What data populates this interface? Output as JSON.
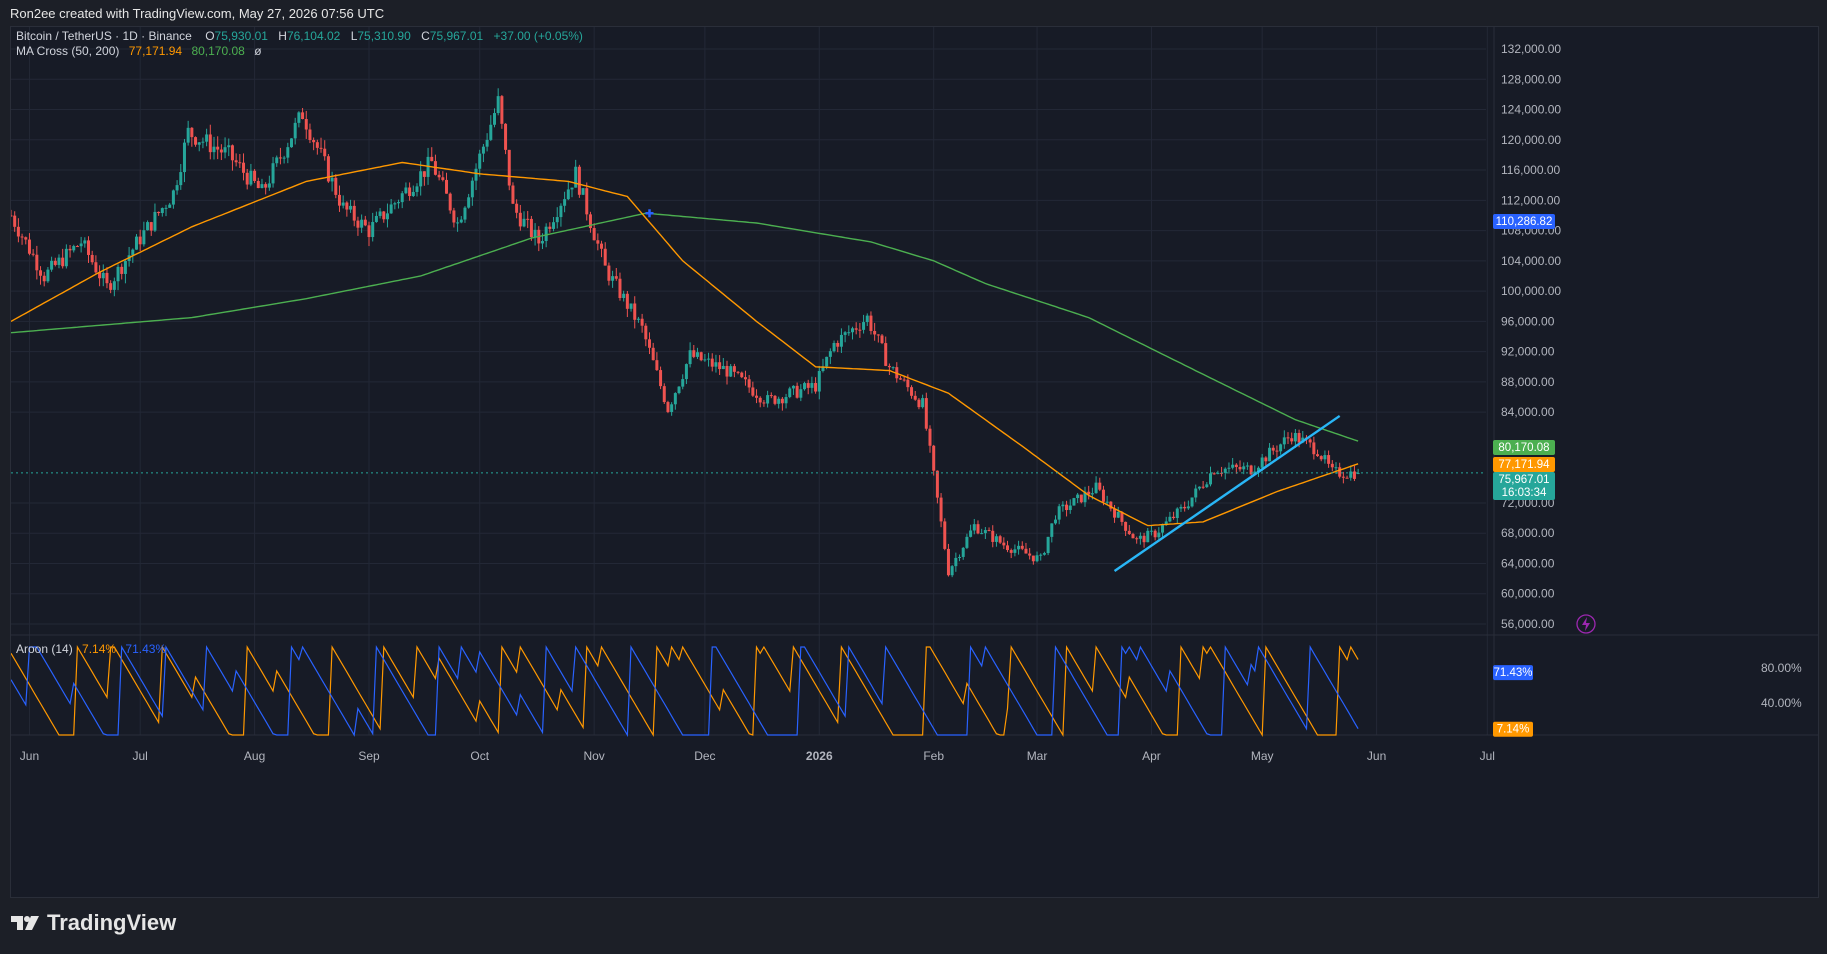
{
  "caption": "Ron2ee created with TradingView.com, May 27, 2026 07:56 UTC",
  "brand": "TradingView",
  "legend": {
    "symbol": "Bitcoin / TetherUS · 1D · Binance",
    "o_label": "O",
    "o": "75,930.01",
    "h_label": "H",
    "h": "76,104.02",
    "l_label": "L",
    "l": "75,310.90",
    "c_label": "C",
    "c": "75,967.01",
    "change": "+37.00 (+0.05%)",
    "ma_name": "MA Cross (50, 200)",
    "ma_fast": "77,171.94",
    "ma_slow": "80,170.08",
    "ma_glyph": "ø",
    "aroon_name": "Aroon (14)",
    "aroon_up": "7.14%",
    "aroon_down": "71.43%"
  },
  "colors": {
    "up": "#26a69a",
    "down": "#ef5350",
    "ma_fast": "#ff9800",
    "ma_slow": "#4caf50",
    "aroon_up": "#ff9800",
    "aroon_down": "#2962ff",
    "trendline": "#29b6f6",
    "badge_blue": "#2962ff",
    "badge_green": "#26a69a"
  },
  "chart_data": {
    "type": "candlestick",
    "title": "Bitcoin / TetherUS · 1D · Binance",
    "y_ticks": [
      "132,000.00",
      "128,000.00",
      "124,000.00",
      "120,000.00",
      "116,000.00",
      "112,000.00",
      "108,000.00",
      "104,000.00",
      "100,000.00",
      "96,000.00",
      "92,000.00",
      "88,000.00",
      "84,000.00",
      "72,000.00",
      "68,000.00",
      "64,000.00",
      "60,000.00",
      "56,000.00"
    ],
    "ylim": [
      56000,
      132000
    ],
    "x_labels": [
      "Jun",
      "Jul",
      "Aug",
      "Sep",
      "Oct",
      "Nov",
      "Dec",
      "2026",
      "Feb",
      "Mar",
      "Apr",
      "May",
      "Jun",
      "Jul"
    ],
    "price_path": [
      [
        "2025-05-27",
        110000
      ],
      [
        "2025-06-05",
        102000
      ],
      [
        "2025-06-15",
        106500
      ],
      [
        "2025-06-22",
        100500
      ],
      [
        "2025-07-01",
        107000
      ],
      [
        "2025-07-10",
        113000
      ],
      [
        "2025-07-14",
        121000
      ],
      [
        "2025-07-25",
        118000
      ],
      [
        "2025-08-03",
        113000
      ],
      [
        "2025-08-14",
        123500
      ],
      [
        "2025-08-25",
        111000
      ],
      [
        "2025-09-01",
        108000
      ],
      [
        "2025-09-18",
        117000
      ],
      [
        "2025-09-25",
        109000
      ],
      [
        "2025-10-06",
        125000
      ],
      [
        "2025-10-10",
        111000
      ],
      [
        "2025-10-17",
        106500
      ],
      [
        "2025-10-27",
        115500
      ],
      [
        "2025-11-04",
        103000
      ],
      [
        "2025-11-14",
        95000
      ],
      [
        "2025-11-21",
        84500
      ],
      [
        "2025-11-27",
        91500
      ],
      [
        "2025-12-07",
        89500
      ],
      [
        "2025-12-18",
        85500
      ],
      [
        "2025-12-31",
        87500
      ],
      [
        "2026-01-05",
        93000
      ],
      [
        "2026-01-14",
        96500
      ],
      [
        "2026-01-20",
        90000
      ],
      [
        "2026-01-29",
        85000
      ],
      [
        "2026-02-05",
        63000
      ],
      [
        "2026-02-12",
        69000
      ],
      [
        "2026-02-20",
        66500
      ],
      [
        "2026-03-02",
        64500
      ],
      [
        "2026-03-06",
        70500
      ],
      [
        "2026-03-17",
        74000
      ],
      [
        "2026-03-28",
        67000
      ],
      [
        "2026-04-02",
        68000
      ],
      [
        "2026-04-10",
        71500
      ],
      [
        "2026-04-18",
        76500
      ],
      [
        "2026-04-28",
        76500
      ],
      [
        "2026-05-09",
        81000
      ],
      [
        "2026-05-16",
        79000
      ],
      [
        "2026-05-20",
        76000
      ],
      [
        "2026-05-27",
        75967
      ]
    ],
    "ma_50_path": [
      [
        "2025-05-27",
        96000
      ],
      [
        "2025-06-20",
        102500
      ],
      [
        "2025-07-15",
        108500
      ],
      [
        "2025-08-15",
        114500
      ],
      [
        "2025-09-10",
        117000
      ],
      [
        "2025-10-01",
        115500
      ],
      [
        "2025-10-25",
        114500
      ],
      [
        "2025-11-10",
        112500
      ],
      [
        "2025-11-25",
        104000
      ],
      [
        "2025-12-15",
        96000
      ],
      [
        "2025-12-31",
        90000
      ],
      [
        "2026-01-20",
        89500
      ],
      [
        "2026-02-05",
        86500
      ],
      [
        "2026-02-25",
        79500
      ],
      [
        "2026-03-15",
        73000
      ],
      [
        "2026-03-31",
        69000
      ],
      [
        "2026-04-15",
        69500
      ],
      [
        "2026-05-05",
        73500
      ],
      [
        "2026-05-27",
        77172
      ]
    ],
    "ma_200_path": [
      [
        "2025-05-27",
        94500
      ],
      [
        "2025-07-15",
        96500
      ],
      [
        "2025-08-15",
        99000
      ],
      [
        "2025-09-15",
        102000
      ],
      [
        "2025-10-15",
        107000
      ],
      [
        "2025-11-15",
        110300
      ],
      [
        "2025-12-15",
        109000
      ],
      [
        "2026-01-15",
        106500
      ],
      [
        "2026-02-01",
        104000
      ],
      [
        "2026-02-15",
        101000
      ],
      [
        "2026-03-15",
        96500
      ],
      [
        "2026-04-15",
        89000
      ],
      [
        "2026-05-10",
        83000
      ],
      [
        "2026-05-27",
        80170
      ]
    ],
    "trendline": [
      [
        "2026-03-22",
        63000
      ],
      [
        "2026-05-22",
        83500
      ]
    ],
    "golden_cross_marker": [
      "2025-11-16",
      110287
    ],
    "price_badges": [
      {
        "label": "110,286.82",
        "price": 110286.82,
        "color": "#2962ff"
      },
      {
        "label": "80,170.08",
        "price": 80170.08,
        "color": "#4caf50"
      },
      {
        "label": "77,171.94",
        "price": 77171.94,
        "color": "#ff9800"
      },
      {
        "label": "75,967.01",
        "sub": "16:03:34",
        "price": 75967.01,
        "color": "#26a69a"
      }
    ],
    "aroon": {
      "name": "Aroon (14)",
      "y_ticks": [
        "80.00%",
        "40.00%"
      ],
      "up_current": 7.14,
      "down_current": 71.43,
      "badges": [
        {
          "label": "71.43%",
          "value": 71.43,
          "color": "#2962ff"
        },
        {
          "label": "7.14%",
          "value": 7.14,
          "color": "#ff9800"
        }
      ]
    }
  }
}
